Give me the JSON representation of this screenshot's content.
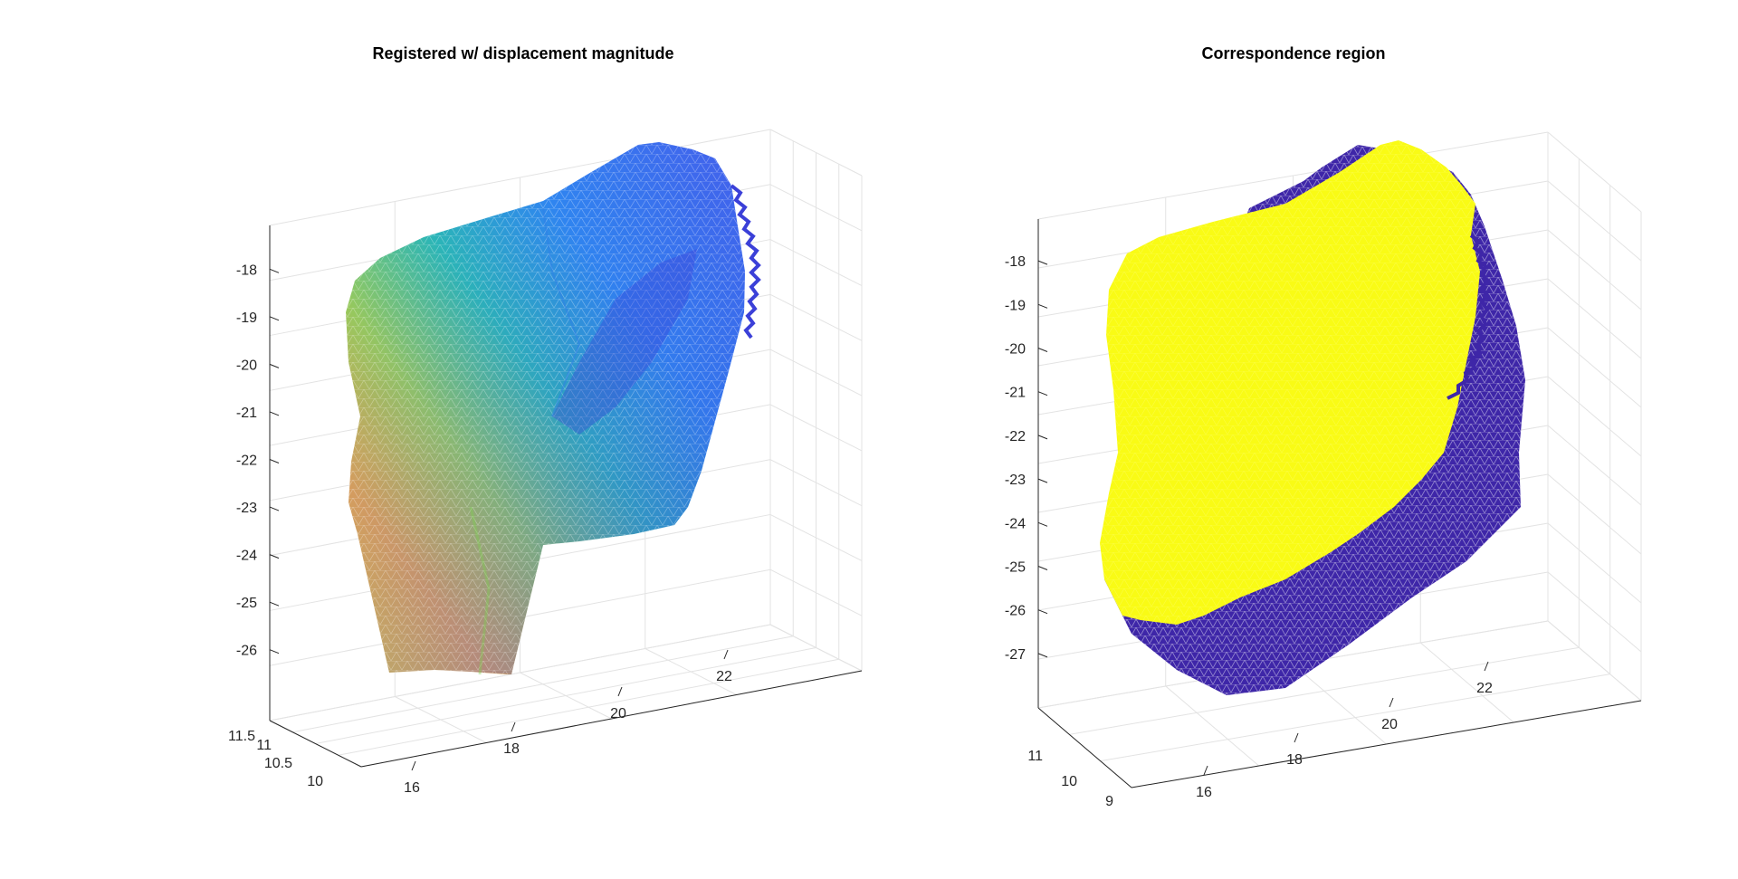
{
  "chart_data": [
    {
      "type": "surface3d",
      "title": "Registered w/ displacement magnitude",
      "xlabel": "",
      "ylabel": "",
      "zlabel": "",
      "x_ticks": [
        "16",
        "18",
        "20",
        "22"
      ],
      "y_ticks": [
        "10",
        "10.5",
        "11",
        "11.5"
      ],
      "z_ticks": [
        "-18",
        "-19",
        "-20",
        "-21",
        "-22",
        "-23",
        "-24",
        "-25",
        "-26"
      ],
      "xlim": [
        15.5,
        23.5
      ],
      "ylim": [
        9.8,
        11.7
      ],
      "zlim": [
        -26.5,
        -17.5
      ],
      "grid": true,
      "colormap": "parula",
      "colors": {
        "low": "#3e26a8",
        "mid": "#35b779",
        "high": "#f9fb15"
      }
    },
    {
      "type": "surface3d",
      "title": "Correspondence region",
      "xlabel": "",
      "ylabel": "",
      "zlabel": "",
      "x_ticks": [
        "16",
        "18",
        "20",
        "22"
      ],
      "y_ticks": [
        "9",
        "10",
        "11"
      ],
      "z_ticks": [
        "-18",
        "-19",
        "-20",
        "-21",
        "-22",
        "-23",
        "-24",
        "-25",
        "-26",
        "-27"
      ],
      "xlim": [
        15.5,
        23.5
      ],
      "ylim": [
        8.8,
        11.7
      ],
      "zlim": [
        -27.5,
        -17.5
      ],
      "grid": true,
      "colors": {
        "inside": "#f9fb15",
        "outside": "#3e26a8"
      }
    }
  ]
}
